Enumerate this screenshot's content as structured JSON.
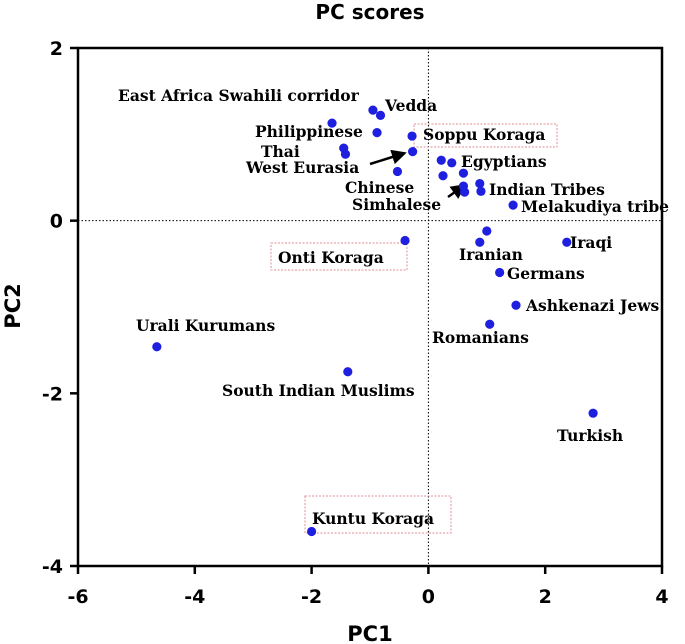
{
  "chart_data": {
    "type": "scatter",
    "title": "PC scores",
    "xlabel": "PC1",
    "ylabel": "PC2",
    "xlim": [
      -6,
      4
    ],
    "ylim": [
      -4,
      2
    ],
    "xticks": [
      "-6",
      "-4",
      "-2",
      "0",
      "2",
      "4"
    ],
    "yticks": [
      "-4",
      "-2",
      "0",
      "2"
    ],
    "grid": false,
    "reference_lines": "dotted lines at x=0 and y=0",
    "point_color": "#1f1fe0",
    "arrow_color": "#000000",
    "highlight_box_color": "#e0909a",
    "points": [
      {
        "x": -1.65,
        "y": 1.13
      },
      {
        "x": -0.95,
        "y": 1.28
      },
      {
        "x": -0.82,
        "y": 1.22
      },
      {
        "x": -0.88,
        "y": 1.02
      },
      {
        "x": -1.45,
        "y": 0.84
      },
      {
        "x": -1.42,
        "y": 0.77
      },
      {
        "x": -0.28,
        "y": 0.98
      },
      {
        "x": -0.27,
        "y": 0.8
      },
      {
        "x": -0.53,
        "y": 0.57
      },
      {
        "x": 0.22,
        "y": 0.7
      },
      {
        "x": 0.25,
        "y": 0.52
      },
      {
        "x": 0.4,
        "y": 0.67
      },
      {
        "x": 0.6,
        "y": 0.55
      },
      {
        "x": 0.6,
        "y": 0.4
      },
      {
        "x": 0.62,
        "y": 0.33
      },
      {
        "x": 0.88,
        "y": 0.43
      },
      {
        "x": 0.9,
        "y": 0.34
      },
      {
        "x": 1.45,
        "y": 0.18
      },
      {
        "x": -0.4,
        "y": -0.23
      },
      {
        "x": 1.0,
        "y": -0.12
      },
      {
        "x": 0.88,
        "y": -0.25
      },
      {
        "x": 2.37,
        "y": -0.25
      },
      {
        "x": 1.22,
        "y": -0.6
      },
      {
        "x": 1.5,
        "y": -0.98
      },
      {
        "x": 1.05,
        "y": -1.2
      },
      {
        "x": -4.65,
        "y": -1.46
      },
      {
        "x": -1.38,
        "y": -1.75
      },
      {
        "x": 2.82,
        "y": -2.23
      },
      {
        "x": -2.0,
        "y": -3.6
      }
    ],
    "labels": [
      {
        "text": "East Africa Swahili corridor"
      },
      {
        "text": "Vedda"
      },
      {
        "text": "Philippinese"
      },
      {
        "text": "Thai"
      },
      {
        "text": "West Eurasia"
      },
      {
        "text": "Soppu Koraga",
        "boxed": true
      },
      {
        "text": "Egyptians"
      },
      {
        "text": "Chinese"
      },
      {
        "text": "Simhalese"
      },
      {
        "text": "Indian Tribes"
      },
      {
        "text": "Melakudiya tribe"
      },
      {
        "text": "Onti Koraga",
        "boxed": true
      },
      {
        "text": "Iranian"
      },
      {
        "text": "Iraqi"
      },
      {
        "text": "Germans"
      },
      {
        "text": "Ashkenazi Jews"
      },
      {
        "text": "Romanians"
      },
      {
        "text": "Urali Kurumans"
      },
      {
        "text": "South Indian Muslims"
      },
      {
        "text": "Turkish"
      },
      {
        "text": "Kuntu Koraga",
        "boxed": true
      }
    ]
  }
}
